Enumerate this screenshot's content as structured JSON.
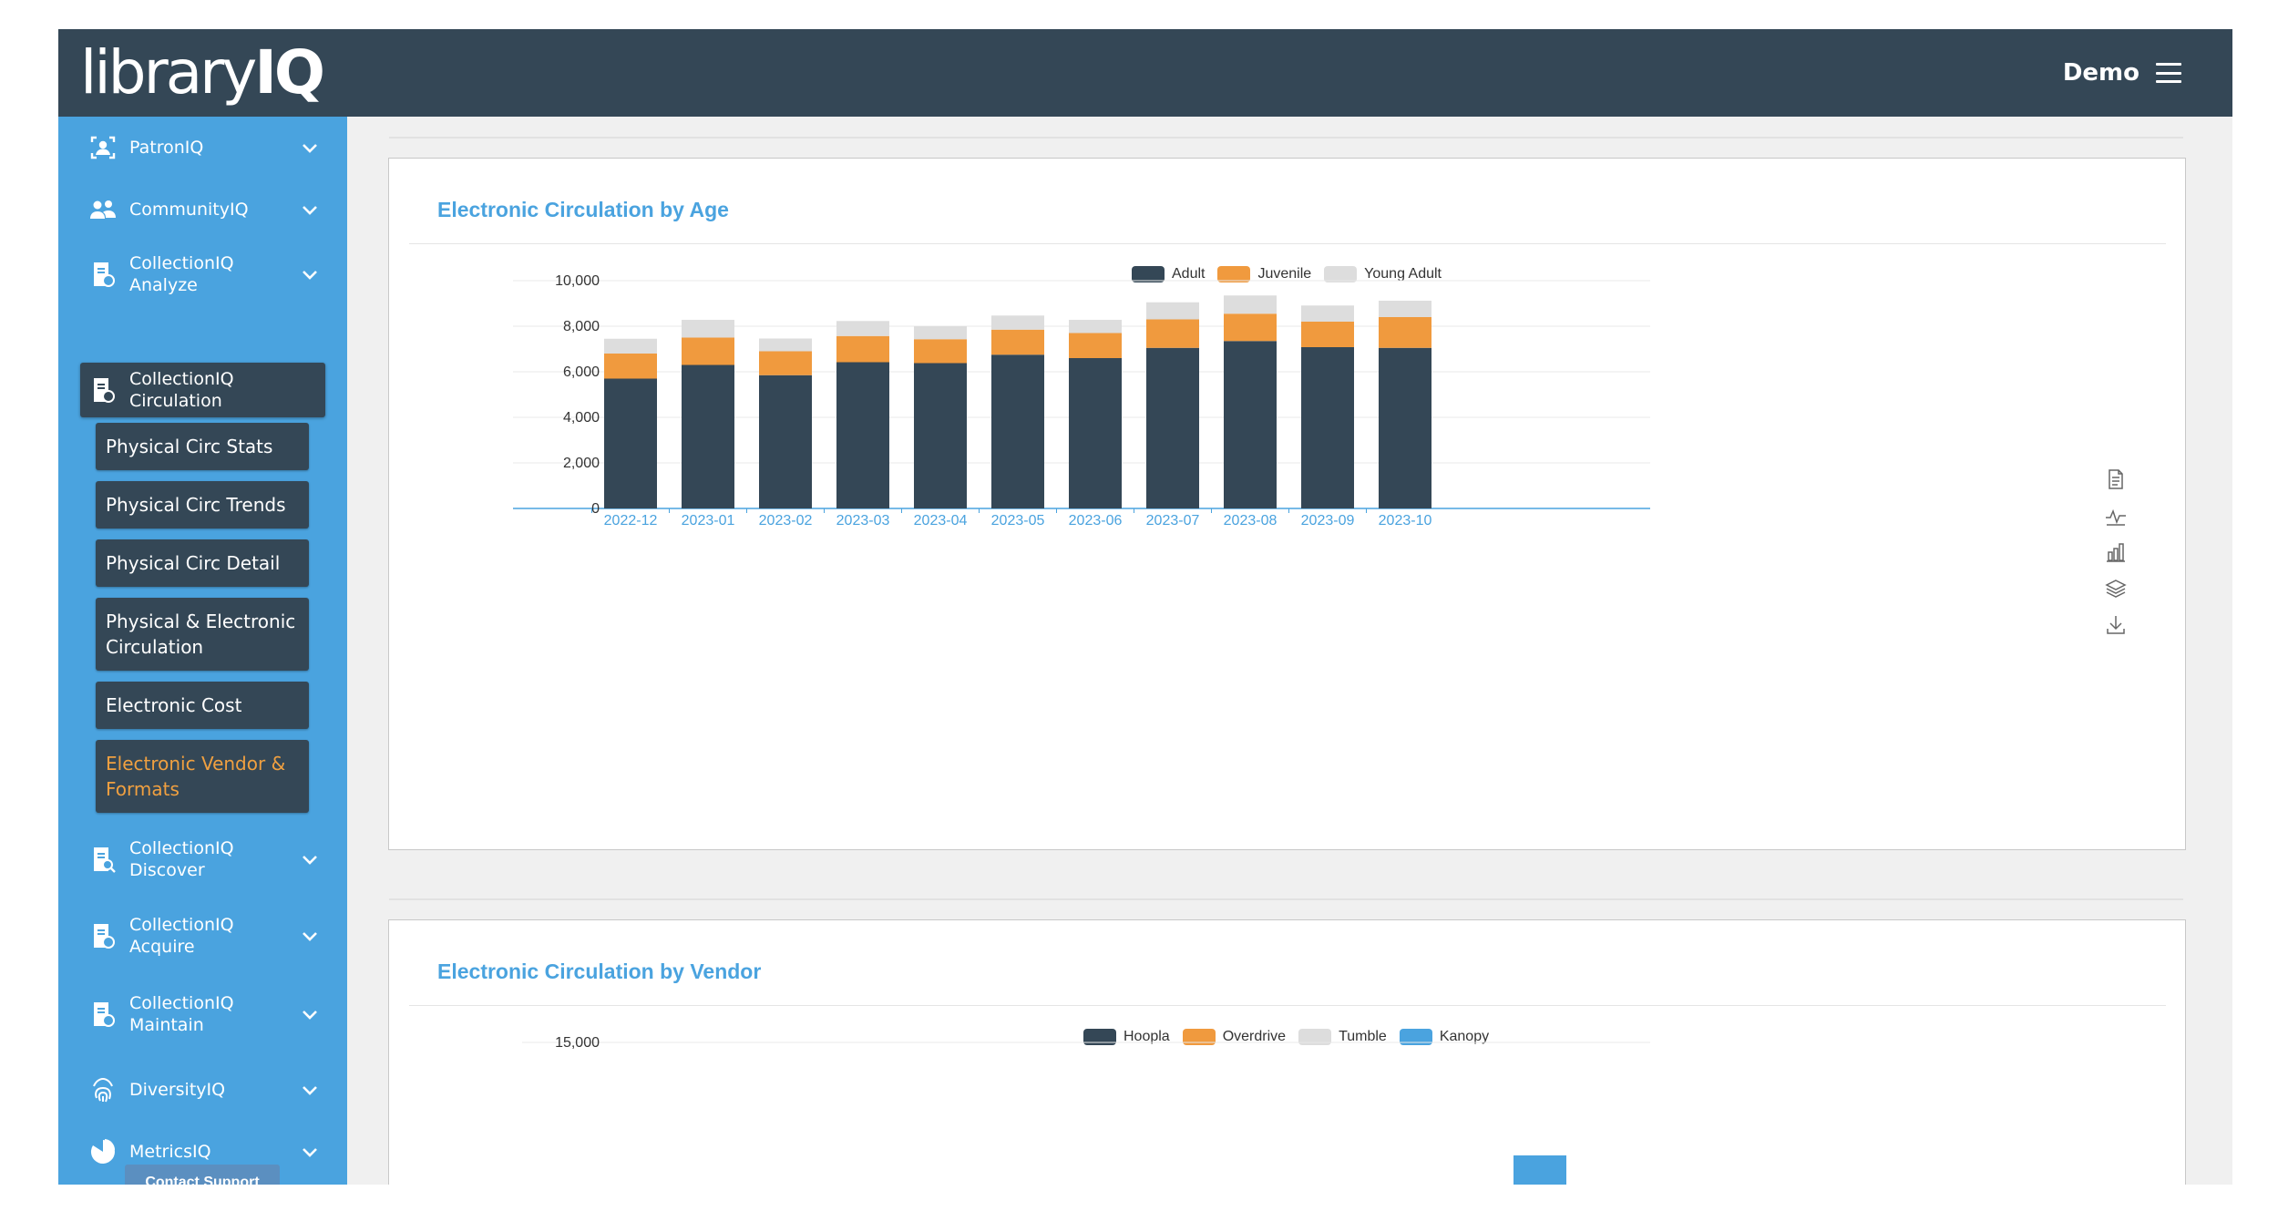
{
  "header": {
    "logo_library": "library",
    "logo_iq": "IQ",
    "user_label": "Demo",
    "menu_icon": "hamburger-menu-icon"
  },
  "sidebar": {
    "items": [
      {
        "label": "PatronIQ",
        "icon": "patron-id-icon"
      },
      {
        "label": "CommunityIQ",
        "icon": "people-icon"
      },
      {
        "label": "CollectionIQ Analyze",
        "icon": "collection-doc-icon"
      },
      {
        "label": "CollectionIQ Circulation",
        "icon": "collection-doc-icon"
      },
      {
        "label": "CollectionIQ Discover",
        "icon": "collection-search-icon"
      },
      {
        "label": "CollectionIQ Acquire",
        "icon": "collection-doc-icon"
      },
      {
        "label": "CollectionIQ Maintain",
        "icon": "collection-doc-icon"
      },
      {
        "label": "DiversityIQ",
        "icon": "fingerprint-icon"
      },
      {
        "label": "MetricsIQ",
        "icon": "pie-chart-icon"
      }
    ],
    "submenu": [
      "Physical Circ Stats",
      "Physical Circ Trends",
      "Physical Circ Detail",
      "Physical & Electronic Circulation",
      "Electronic Cost",
      "Electronic Vendor & Formats"
    ],
    "active_submenu_index": 5,
    "support_label": "Contact Support"
  },
  "colors": {
    "header_bg": "#344756",
    "sidebar_bg": "#4aa3df",
    "accent_orange": "#f0a040",
    "dark_series": "#344756",
    "orange_series": "#f09a3e",
    "light_series": "#dddddd",
    "blue_series": "#4aa3df"
  },
  "toolbox": [
    "data-view-icon",
    "line-chart-icon",
    "bar-chart-icon",
    "stack-icon",
    "download-icon"
  ],
  "chart_data": [
    {
      "type": "bar",
      "stacked": true,
      "title": "Electronic Circulation by Age",
      "categories": [
        "2022-12",
        "2023-01",
        "2023-02",
        "2023-03",
        "2023-04",
        "2023-05",
        "2023-06",
        "2023-07",
        "2023-08",
        "2023-09",
        "2023-10"
      ],
      "series": [
        {
          "name": "Adult",
          "color": "#344756",
          "values": [
            5700,
            6300,
            5850,
            6420,
            6380,
            6750,
            6600,
            7050,
            7350,
            7080,
            7050
          ]
        },
        {
          "name": "Juvenile",
          "color": "#f09a3e",
          "values": [
            1100,
            1200,
            1050,
            1150,
            1050,
            1100,
            1100,
            1250,
            1200,
            1120,
            1350
          ]
        },
        {
          "name": "Young Adult",
          "color": "#dddddd",
          "values": [
            650,
            780,
            560,
            660,
            570,
            620,
            580,
            750,
            800,
            710,
            720
          ]
        }
      ],
      "yticks": [
        "0",
        "2,000",
        "4,000",
        "6,000",
        "8,000",
        "10,000"
      ],
      "ylim": [
        0,
        10000
      ],
      "legend": "top-center",
      "grid": true
    },
    {
      "type": "bar",
      "stacked": true,
      "title": "Electronic Circulation by Vendor",
      "series": [
        {
          "name": "Hoopla",
          "color": "#344756"
        },
        {
          "name": "Overdrive",
          "color": "#f09a3e"
        },
        {
          "name": "Tumble",
          "color": "#dddddd"
        },
        {
          "name": "Kanopy",
          "color": "#4aa3df"
        }
      ],
      "yticks": [
        "15,000"
      ],
      "ylim": [
        0,
        15000
      ],
      "legend": "top-center",
      "grid": true
    }
  ]
}
